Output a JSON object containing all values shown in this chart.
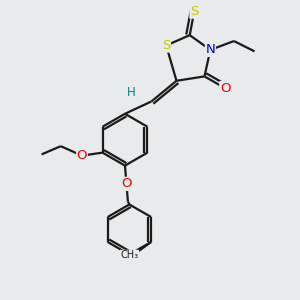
{
  "bg_color": "#e8eaeb",
  "bond_color": "#1a1a1a",
  "bond_width": 1.6,
  "atom_colors": {
    "S": "#c8c800",
    "N": "#0000ee",
    "O": "#ee0000",
    "H": "#008080"
  },
  "font_size": 8.5,
  "figsize": [
    3.0,
    3.0
  ],
  "dpi": 100
}
